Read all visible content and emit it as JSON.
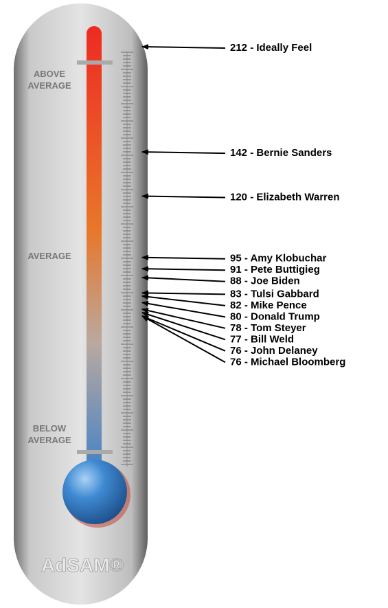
{
  "chart_data": {
    "type": "thermometer",
    "values": [
      212,
      142,
      120,
      95,
      91,
      88,
      83,
      82,
      80,
      78,
      77,
      76,
      76
    ],
    "value_labels": [
      "212 - Ideally Feel",
      "142 - Bernie Sanders",
      "120 - Elizabeth Warren",
      "95 - Amy Klobuchar",
      "91 - Pete Buttigieg",
      "88 - Joe Biden",
      "83 - Tulsi Gabbard",
      "82 - Mike Pence",
      "80 - Donald Trump",
      "78 - Tom Steyer",
      "77 - Bill Weld",
      "76 - John Delaney",
      "76 - Michael Bloomberg"
    ],
    "log_scale": true,
    "zones": [
      "ABOVE AVERAGE",
      "AVERAGE",
      "BELOW AVERAGE"
    ],
    "brand": "AdSAM®",
    "color": "#000000"
  }
}
